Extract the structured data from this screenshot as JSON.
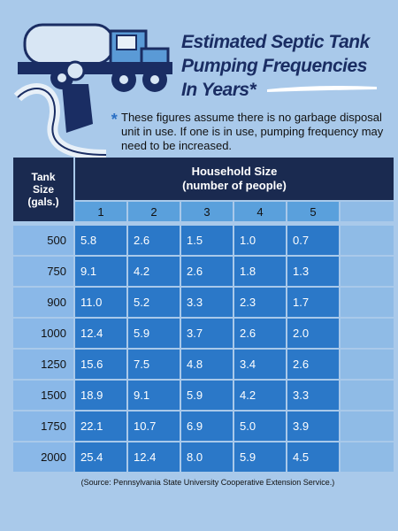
{
  "title_lines": [
    "Estimated Septic Tank",
    "Pumping Frequencies",
    "In Years*"
  ],
  "note": {
    "marker": "*",
    "text": "These figures assume there is no garbage disposal unit in use.  If one is in use, pumping frequency may need to be increased."
  },
  "table": {
    "row_header_lines": [
      "Tank",
      "Size",
      "(gals.)"
    ],
    "group_header_lines": [
      "Household Size",
      "(number of people)"
    ],
    "columns": [
      "1",
      "2",
      "3",
      "4",
      "5"
    ],
    "rows": [
      {
        "tank": "500",
        "values": [
          "5.8",
          "2.6",
          "1.5",
          "1.0",
          "0.7"
        ]
      },
      {
        "tank": "750",
        "values": [
          "9.1",
          "4.2",
          "2.6",
          "1.8",
          "1.3"
        ]
      },
      {
        "tank": "900",
        "values": [
          "11.0",
          "5.2",
          "3.3",
          "2.3",
          "1.7"
        ]
      },
      {
        "tank": "1000",
        "values": [
          "12.4",
          "5.9",
          "3.7",
          "2.6",
          "2.0"
        ]
      },
      {
        "tank": "1250",
        "values": [
          "15.6",
          "7.5",
          "4.8",
          "3.4",
          "2.6"
        ]
      },
      {
        "tank": "1500",
        "values": [
          "18.9",
          "9.1",
          "5.9",
          "4.2",
          "3.3"
        ]
      },
      {
        "tank": "1750",
        "values": [
          "22.1",
          "10.7",
          "6.9",
          "5.0",
          "3.9"
        ]
      },
      {
        "tank": "2000",
        "values": [
          "25.4",
          "12.4",
          "8.0",
          "5.9",
          "4.5"
        ]
      }
    ]
  },
  "source": "(Source: Pennsylvania State University Cooperative Extension Service.)"
}
